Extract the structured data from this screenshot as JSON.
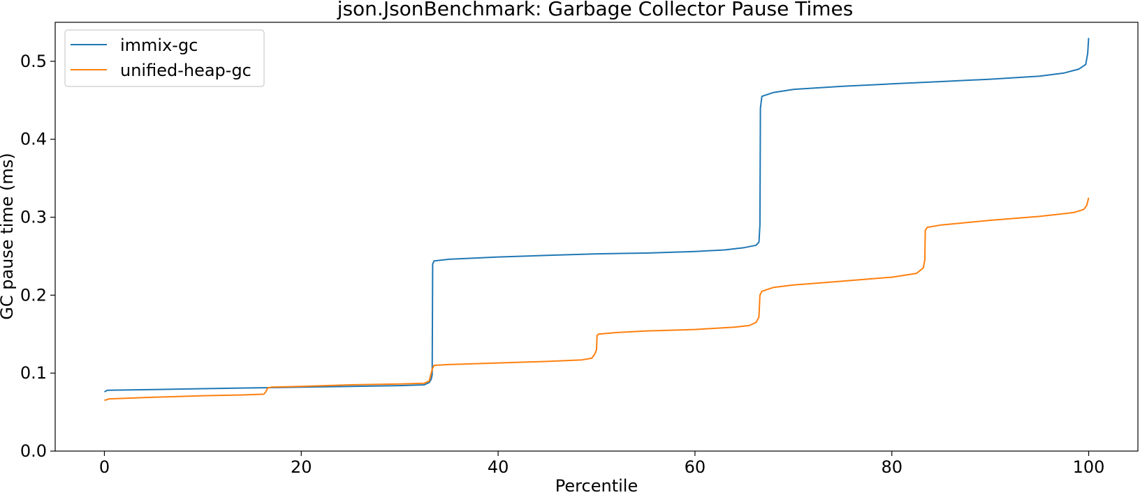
{
  "chart_data": {
    "type": "line",
    "title": "json.JsonBenchmark: Garbage Collector Pause Times",
    "xlabel": "Percentile",
    "ylabel": "GC pause time (ms)",
    "xlim": [
      -5,
      105
    ],
    "ylim": [
      0.0,
      0.55
    ],
    "x_ticks": [
      0,
      20,
      40,
      60,
      80,
      100
    ],
    "y_ticks": [
      0.0,
      0.1,
      0.2,
      0.3,
      0.4,
      0.5
    ],
    "x_tick_labels": [
      "0",
      "20",
      "40",
      "60",
      "80",
      "100"
    ],
    "y_tick_labels": [
      "0.0",
      "0.1",
      "0.2",
      "0.3",
      "0.4",
      "0.5"
    ],
    "grid": false,
    "legend_position": "top-left",
    "series": [
      {
        "name": "immix-gc",
        "color": "#1f77b4",
        "points": [
          [
            0,
            0.076
          ],
          [
            0.3,
            0.078
          ],
          [
            5,
            0.079
          ],
          [
            10,
            0.08
          ],
          [
            15,
            0.081
          ],
          [
            20,
            0.082
          ],
          [
            25,
            0.083
          ],
          [
            30,
            0.084
          ],
          [
            32.5,
            0.085
          ],
          [
            33.0,
            0.088
          ],
          [
            33.2,
            0.092
          ],
          [
            33.3,
            0.098
          ],
          [
            33.35,
            0.24
          ],
          [
            33.5,
            0.244
          ],
          [
            35,
            0.246
          ],
          [
            40,
            0.249
          ],
          [
            45,
            0.251
          ],
          [
            50,
            0.253
          ],
          [
            55,
            0.254
          ],
          [
            60,
            0.256
          ],
          [
            63,
            0.258
          ],
          [
            65,
            0.261
          ],
          [
            66.2,
            0.264
          ],
          [
            66.5,
            0.268
          ],
          [
            66.6,
            0.29
          ],
          [
            66.65,
            0.44
          ],
          [
            66.8,
            0.455
          ],
          [
            68,
            0.46
          ],
          [
            70,
            0.464
          ],
          [
            75,
            0.468
          ],
          [
            80,
            0.471
          ],
          [
            85,
            0.474
          ],
          [
            90,
            0.477
          ],
          [
            95,
            0.481
          ],
          [
            97.5,
            0.485
          ],
          [
            99,
            0.49
          ],
          [
            99.7,
            0.496
          ],
          [
            99.9,
            0.51
          ],
          [
            100,
            0.53
          ]
        ]
      },
      {
        "name": "unified-heap-gc",
        "color": "#ff7f0e",
        "points": [
          [
            0,
            0.065
          ],
          [
            0.5,
            0.067
          ],
          [
            5,
            0.069
          ],
          [
            10,
            0.071
          ],
          [
            14,
            0.072
          ],
          [
            16.2,
            0.073
          ],
          [
            16.4,
            0.076
          ],
          [
            16.6,
            0.081
          ],
          [
            17,
            0.082
          ],
          [
            20,
            0.083
          ],
          [
            25,
            0.085
          ],
          [
            30,
            0.086
          ],
          [
            32.5,
            0.087
          ],
          [
            33.0,
            0.09
          ],
          [
            33.3,
            0.105
          ],
          [
            33.5,
            0.11
          ],
          [
            35,
            0.111
          ],
          [
            40,
            0.113
          ],
          [
            45,
            0.115
          ],
          [
            48.5,
            0.117
          ],
          [
            49.5,
            0.119
          ],
          [
            49.8,
            0.124
          ],
          [
            50.0,
            0.13
          ],
          [
            50.05,
            0.148
          ],
          [
            50.2,
            0.15
          ],
          [
            52,
            0.152
          ],
          [
            55,
            0.154
          ],
          [
            60,
            0.156
          ],
          [
            64,
            0.159
          ],
          [
            65.5,
            0.161
          ],
          [
            66.2,
            0.165
          ],
          [
            66.5,
            0.172
          ],
          [
            66.6,
            0.2
          ],
          [
            66.8,
            0.205
          ],
          [
            68,
            0.21
          ],
          [
            70,
            0.213
          ],
          [
            75,
            0.218
          ],
          [
            80,
            0.223
          ],
          [
            82.5,
            0.228
          ],
          [
            83.2,
            0.235
          ],
          [
            83.35,
            0.245
          ],
          [
            83.4,
            0.283
          ],
          [
            83.6,
            0.287
          ],
          [
            85,
            0.29
          ],
          [
            90,
            0.296
          ],
          [
            95,
            0.301
          ],
          [
            98.5,
            0.306
          ],
          [
            99.5,
            0.31
          ],
          [
            99.8,
            0.315
          ],
          [
            100,
            0.325
          ]
        ]
      }
    ]
  }
}
